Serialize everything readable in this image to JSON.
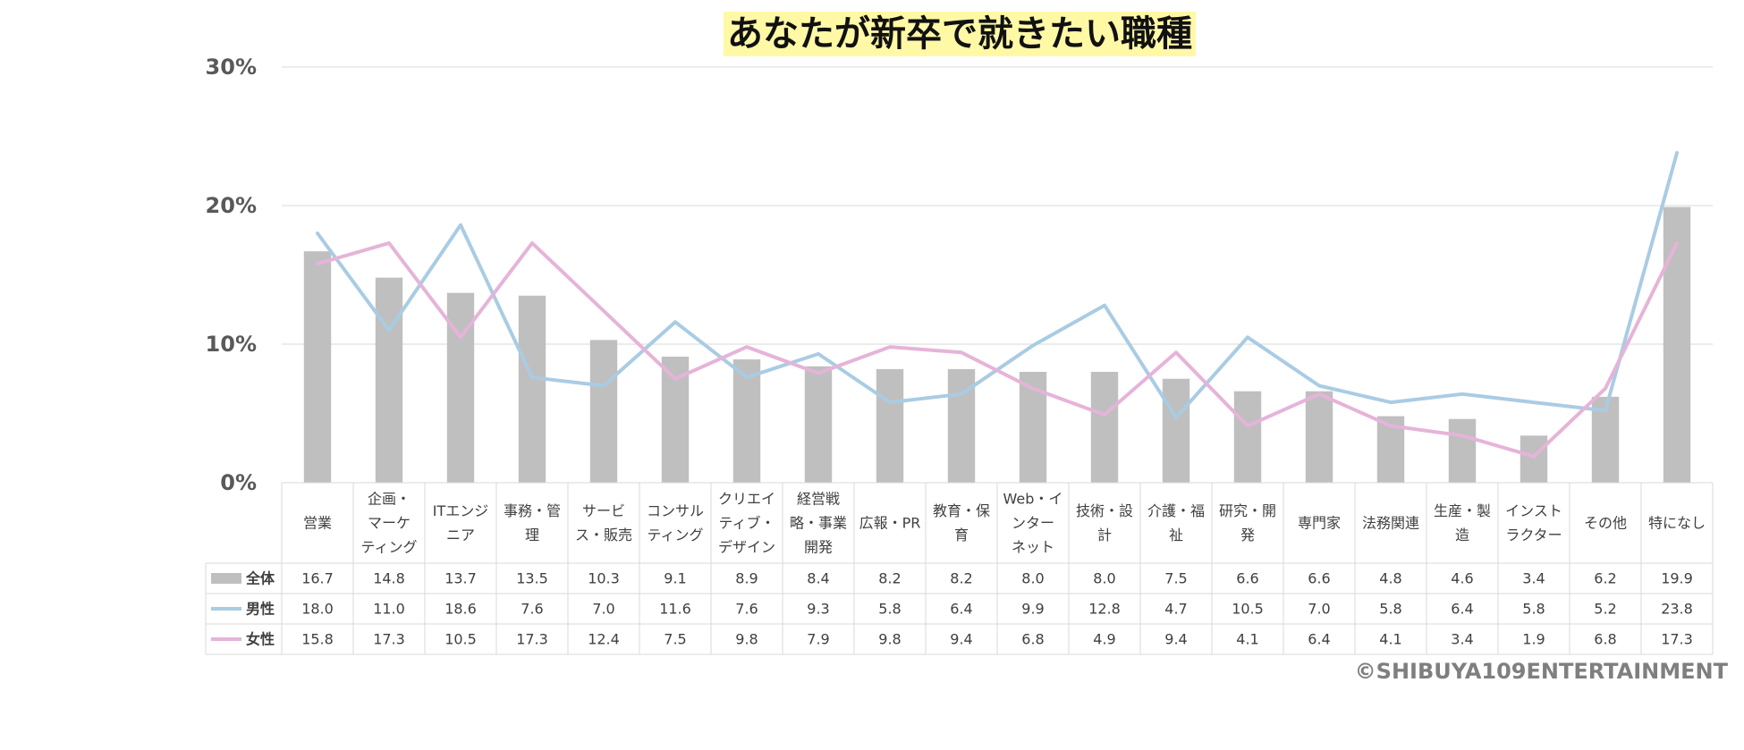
{
  "chart_data": {
    "type": "bar",
    "title": "あなたが新卒で就きたい職種",
    "ylim": [
      0,
      30
    ],
    "yticks": [
      0,
      10,
      20,
      30
    ],
    "ytick_labels": [
      "0%",
      "10%",
      "20%",
      "30%"
    ],
    "grid": true,
    "legend": "table-left",
    "categories": [
      [
        "営業"
      ],
      [
        "企画・",
        "マーケ",
        "ティング"
      ],
      [
        "ITエンジ",
        "ニア"
      ],
      [
        "事務・管",
        "理"
      ],
      [
        "サービ",
        "ス・販売"
      ],
      [
        "コンサル",
        "ティング"
      ],
      [
        "クリエイ",
        "ティブ・",
        "デザイン"
      ],
      [
        "経営戦",
        "略・事業",
        "開発"
      ],
      [
        "広報・PR"
      ],
      [
        "教育・保",
        "育"
      ],
      [
        "Web・イ",
        "ンター",
        "ネット"
      ],
      [
        "技術・設",
        "計"
      ],
      [
        "介護・福",
        "祉"
      ],
      [
        "研究・開",
        "発"
      ],
      [
        "専門家"
      ],
      [
        "法務関連"
      ],
      [
        "生産・製",
        "造"
      ],
      [
        "インスト",
        "ラクター"
      ],
      [
        "その他"
      ],
      [
        "特になし"
      ]
    ],
    "series": [
      {
        "name": "全体",
        "kind": "bar",
        "color": "#bfbfbf",
        "values": [
          16.7,
          14.8,
          13.7,
          13.5,
          10.3,
          9.1,
          8.9,
          8.4,
          8.2,
          8.2,
          8.0,
          8.0,
          7.5,
          6.6,
          6.6,
          4.8,
          4.6,
          3.4,
          6.2,
          19.9
        ]
      },
      {
        "name": "男性",
        "kind": "line",
        "color": "#a9cce3",
        "values": [
          18.0,
          11.0,
          18.6,
          7.6,
          7.0,
          11.6,
          7.6,
          9.3,
          5.8,
          6.4,
          9.9,
          12.8,
          4.7,
          10.5,
          7.0,
          5.8,
          6.4,
          5.8,
          5.2,
          23.8
        ]
      },
      {
        "name": "女性",
        "kind": "line",
        "color": "#e6b3d9",
        "values": [
          15.8,
          17.3,
          10.5,
          17.3,
          12.4,
          7.5,
          9.8,
          7.9,
          9.8,
          9.4,
          6.8,
          4.9,
          9.4,
          4.1,
          6.4,
          4.1,
          3.4,
          1.9,
          6.8,
          17.3
        ]
      }
    ]
  },
  "style": {
    "title_highlight": "#fff9a6",
    "grid_color": "#d9d9d9",
    "table_border": "#d9d9d9",
    "text_color": "#404040",
    "tick_color": "#595959",
    "copyright_color": "#7f7f7f"
  },
  "copyright": "©SHIBUYA109ENTERTAINMENT"
}
